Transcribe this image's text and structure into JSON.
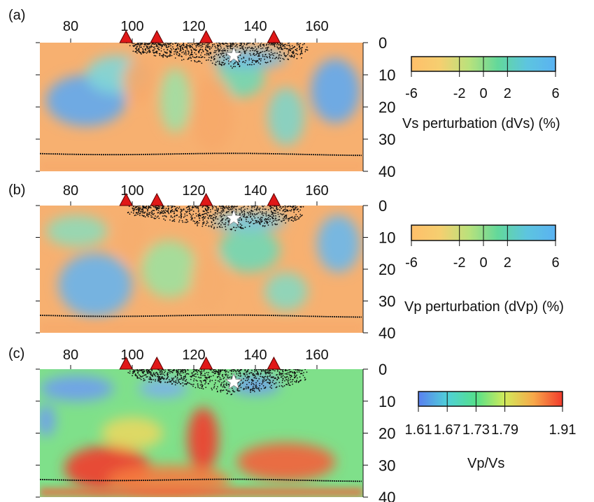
{
  "chart_data": [
    {
      "type": "heatmap",
      "panel_label": "(a)",
      "x_ticks": [
        80,
        100,
        120,
        140,
        160
      ],
      "xlim": [
        70,
        175
      ],
      "y_ticks": [
        0,
        10,
        20,
        30,
        40
      ],
      "ylim": [
        0,
        40
      ],
      "y_reversed": true,
      "moho_depth": 34.5,
      "volcanoes_x": [
        98,
        108,
        124,
        146
      ],
      "mainshock": {
        "x": 133,
        "y": 4
      },
      "seismicity_depth_range": [
        0,
        8
      ],
      "colorbar": {
        "label": "Vs perturbation (dVs) (%)",
        "ticks": [
          "-6",
          "-2",
          "0",
          "2",
          "6"
        ],
        "tick_values": [
          -6,
          -2,
          0,
          2,
          6
        ],
        "range": [
          -6,
          6
        ],
        "colors": [
          "#ffbf6a",
          "#f5cf70",
          "#b9e27c",
          "#62d89b",
          "#5dc5df",
          "#5ab2f2"
        ]
      },
      "anomalies": [
        {
          "x": 85,
          "y": 18,
          "rx": 13,
          "ry": 8,
          "color": "#5fa8f0"
        },
        {
          "x": 95,
          "y": 10,
          "rx": 10,
          "ry": 6,
          "color": "#7fd6d8"
        },
        {
          "x": 114,
          "y": 18,
          "rx": 5,
          "ry": 10,
          "color": "#9fe0a5"
        },
        {
          "x": 135,
          "y": 11,
          "rx": 8,
          "ry": 6,
          "color": "#70d8b5"
        },
        {
          "x": 150,
          "y": 23,
          "rx": 6,
          "ry": 9,
          "color": "#7fd4c8"
        },
        {
          "x": 166,
          "y": 15,
          "rx": 8,
          "ry": 10,
          "color": "#5fa8f0"
        },
        {
          "x": 138,
          "y": 5,
          "rx": 12,
          "ry": 3,
          "color": "#6fbde8"
        },
        {
          "x": 102,
          "y": 12,
          "rx": 5,
          "ry": 7,
          "color": "#f7a86a"
        },
        {
          "x": 126,
          "y": 22,
          "rx": 7,
          "ry": 12,
          "color": "#f7a86a"
        }
      ]
    },
    {
      "type": "heatmap",
      "panel_label": "(b)",
      "x_ticks": [
        80,
        100,
        120,
        140,
        160
      ],
      "xlim": [
        70,
        175
      ],
      "y_ticks": [
        0,
        10,
        20,
        30,
        40
      ],
      "ylim": [
        0,
        40
      ],
      "y_reversed": true,
      "moho_depth": 34.5,
      "volcanoes_x": [
        98,
        108,
        124,
        146
      ],
      "mainshock": {
        "x": 133,
        "y": 4
      },
      "seismicity_depth_range": [
        0,
        8
      ],
      "colorbar": {
        "label": "Vp perturbation (dVp) (%)",
        "ticks": [
          "-6",
          "-2",
          "0",
          "2",
          "6"
        ],
        "tick_values": [
          -6,
          -2,
          0,
          2,
          6
        ],
        "range": [
          -6,
          6
        ],
        "colors": [
          "#ffbf6a",
          "#f5cf70",
          "#b9e27c",
          "#62d89b",
          "#5dc5df",
          "#5ab2f2"
        ]
      },
      "anomalies": [
        {
          "x": 88,
          "y": 25,
          "rx": 12,
          "ry": 10,
          "color": "#68b4ec"
        },
        {
          "x": 82,
          "y": 8,
          "rx": 10,
          "ry": 5,
          "color": "#8fdab8"
        },
        {
          "x": 112,
          "y": 20,
          "rx": 9,
          "ry": 9,
          "color": "#9de19f"
        },
        {
          "x": 138,
          "y": 14,
          "rx": 10,
          "ry": 7,
          "color": "#70d8b5"
        },
        {
          "x": 150,
          "y": 27,
          "rx": 7,
          "ry": 6,
          "color": "#86d8c0"
        },
        {
          "x": 167,
          "y": 12,
          "rx": 7,
          "ry": 9,
          "color": "#6ab8ec"
        },
        {
          "x": 138,
          "y": 5,
          "rx": 12,
          "ry": 3,
          "color": "#78c6e0"
        },
        {
          "x": 100,
          "y": 10,
          "rx": 5,
          "ry": 8,
          "color": "#f6ae6e"
        },
        {
          "x": 125,
          "y": 24,
          "rx": 6,
          "ry": 10,
          "color": "#f6ae6e"
        }
      ]
    },
    {
      "type": "heatmap",
      "panel_label": "(c)",
      "x_ticks": [
        80,
        100,
        120,
        140,
        160
      ],
      "xlim": [
        70,
        175
      ],
      "y_ticks": [
        0,
        10,
        20,
        30,
        40
      ],
      "ylim": [
        0,
        40
      ],
      "y_reversed": true,
      "moho_depth": 34.5,
      "volcanoes_x": [
        98,
        108,
        124,
        146
      ],
      "mainshock": {
        "x": 133,
        "y": 4
      },
      "seismicity_depth_range": [
        0,
        8
      ],
      "colorbar": {
        "label": "Vp/Vs",
        "ticks": [
          "1.61",
          "1.67",
          "1.73",
          "1.79",
          "1.91"
        ],
        "tick_values": [
          1.61,
          1.67,
          1.73,
          1.79,
          1.91
        ],
        "range": [
          1.61,
          1.91
        ],
        "colors": [
          "#5a80f0",
          "#4fd0d8",
          "#55e08a",
          "#d2ea5a",
          "#f7a84a",
          "#f23a2c"
        ]
      },
      "anomalies": [
        {
          "x": 82,
          "y": 6,
          "rx": 12,
          "ry": 4,
          "color": "#6f9ef0"
        },
        {
          "x": 110,
          "y": 6,
          "rx": 8,
          "ry": 3,
          "color": "#7ab0ee"
        },
        {
          "x": 140,
          "y": 5,
          "rx": 8,
          "ry": 3,
          "color": "#6f9ef0"
        },
        {
          "x": 92,
          "y": 31,
          "rx": 14,
          "ry": 7,
          "color": "#f23a2c"
        },
        {
          "x": 123,
          "y": 22,
          "rx": 5,
          "ry": 10,
          "color": "#f23a2c"
        },
        {
          "x": 150,
          "y": 29,
          "rx": 16,
          "ry": 6,
          "color": "#f4603a"
        },
        {
          "x": 112,
          "y": 35,
          "rx": 20,
          "ry": 5,
          "color": "#f57c40"
        },
        {
          "x": 100,
          "y": 20,
          "rx": 10,
          "ry": 5,
          "color": "#e8d860"
        },
        {
          "x": 72,
          "y": 16,
          "rx": 3,
          "ry": 5,
          "color": "#6f9ef0"
        }
      ]
    }
  ]
}
